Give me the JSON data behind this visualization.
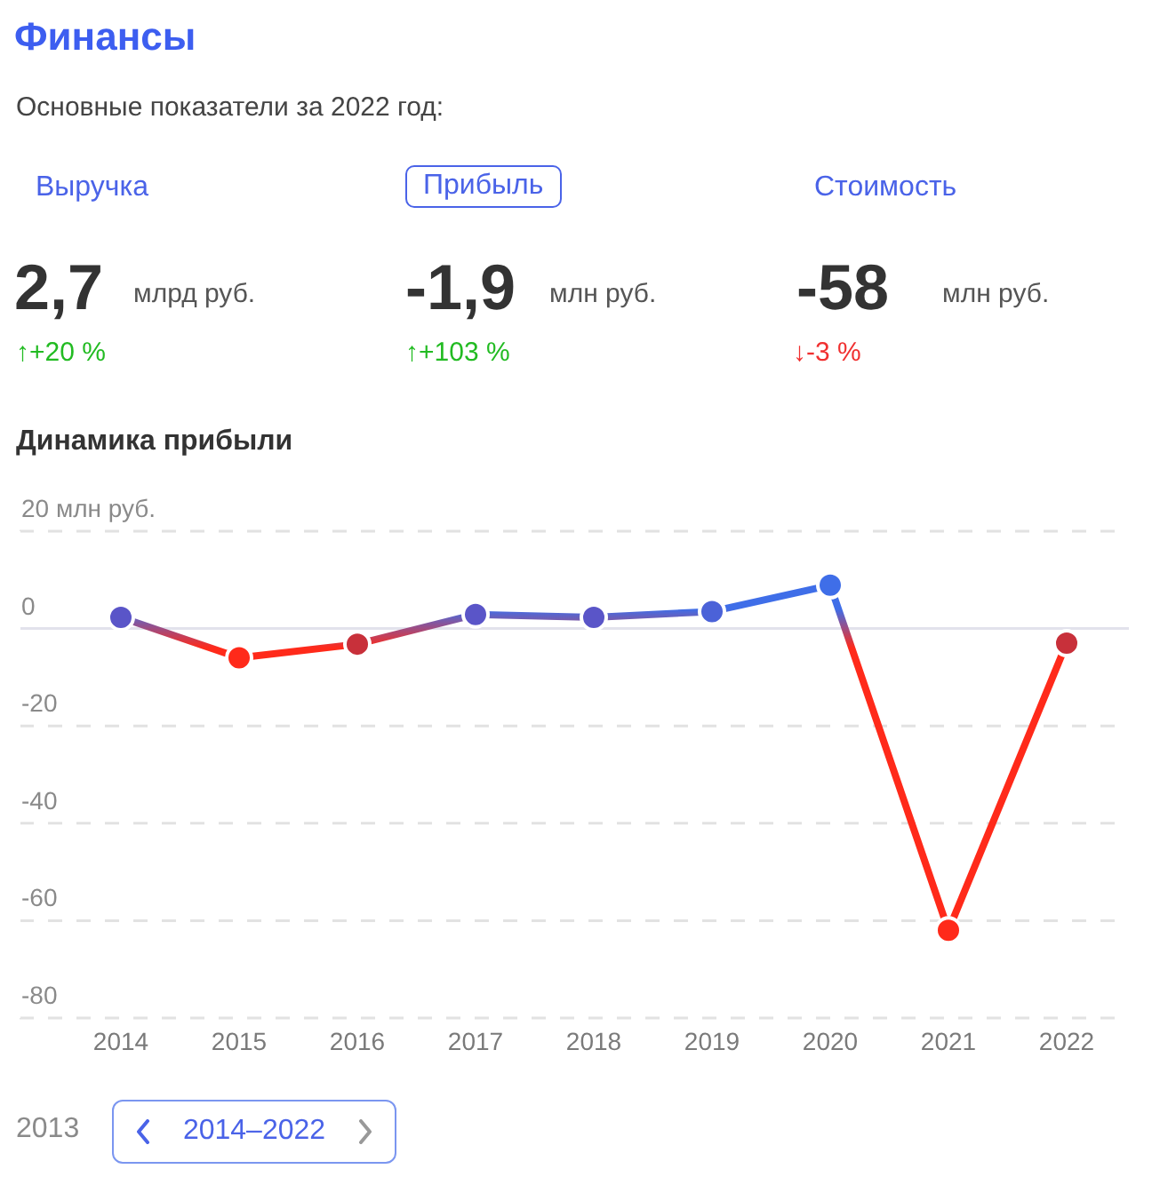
{
  "chart_data": {
    "type": "line",
    "title": "Финансы",
    "subtitle": "Основные показатели за 2022 год:",
    "annotations": [
      "Выручка",
      "Прибыль",
      "Стоимость",
      "2,7",
      "млрд руб.",
      "↑+20 %",
      "-1,9",
      "млн руб.",
      "↑+103 %",
      "-58",
      "млн руб.",
      "↓-3 %",
      "Динамика прибыли",
      "2013",
      "2014–2022"
    ],
    "categories": [
      "2014",
      "2015",
      "2016",
      "2017",
      "2018",
      "2019",
      "2020",
      "2021",
      "2022"
    ],
    "series": [
      {
        "color": "#3f6ee8",
        "values": [
          2.3,
          -6,
          -3.2,
          2.9,
          2.3,
          3.5,
          8.9,
          -62,
          -3
        ],
        "colors": [
          "#5a55c8",
          "#ff2a1a",
          "#c8303a",
          "#5a55c8",
          "#5a55c8",
          "#4b62d8",
          "#3f6ee8",
          "#ff2a1a",
          "#c8303a"
        ]
      }
    ],
    "ylim": [
      -80,
      20
    ],
    "yticks": [
      {
        "value": 20,
        "label": "20 млн руб."
      },
      0,
      -20,
      -40,
      -60,
      -80
    ],
    "grid": "y",
    "ref_lines": [
      {
        "axis": "y",
        "value": 0,
        "color": "#e2e2ec"
      }
    ],
    "marker": "circle",
    "line_style": "solid"
  }
}
